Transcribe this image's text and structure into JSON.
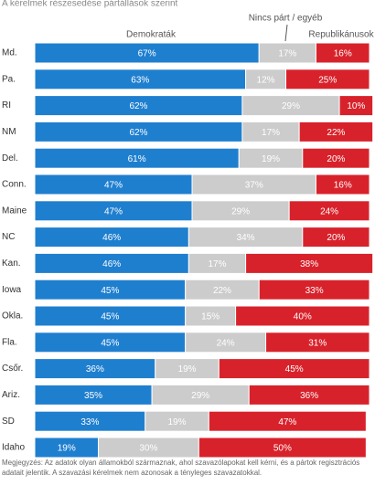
{
  "chart_data": {
    "type": "stacked-bar-horizontal",
    "title": "A kérelmek részesedése pártállások szerint",
    "categories": [
      "Md.",
      "Pa.",
      "RI",
      "NM",
      "Del.",
      "Conn.",
      "Maine",
      "NC",
      "Kan.",
      "Iowa",
      "Okla.",
      "Fla.",
      "Csőr.",
      "Ariz.",
      "SD",
      "Idaho"
    ],
    "series": [
      {
        "name": "Demokraták",
        "color": "#1f7fcf",
        "text_color": "#ffffff",
        "values": [
          67,
          63,
          62,
          62,
          61,
          47,
          47,
          46,
          46,
          45,
          45,
          45,
          36,
          35,
          33,
          19
        ],
        "value_labels": [
          "67%",
          "63%",
          "62%",
          "62%",
          "61%",
          "47%",
          "47%",
          "46%",
          "46%",
          "45%",
          "45%",
          "45%",
          "36%",
          "35%",
          "33%",
          "19%"
        ]
      },
      {
        "name": "Nincs párt / egyéb",
        "color": "#cccccc",
        "text_color": "#ffffff",
        "values": [
          17,
          12,
          29,
          17,
          19,
          37,
          29,
          34,
          17,
          22,
          15,
          24,
          19,
          29,
          19,
          30
        ],
        "value_labels": [
          "17%",
          "12%",
          "29%",
          "17%",
          "19%",
          "37%",
          "29%",
          "34%",
          "17%",
          "22%",
          "15%",
          "24%",
          "19%",
          "29%",
          "19%",
          "30%"
        ]
      },
      {
        "name": "Republikánusok",
        "color": "#d8222b",
        "text_color": "#ffffff",
        "values": [
          16,
          25,
          10,
          22,
          20,
          16,
          24,
          20,
          38,
          33,
          40,
          31,
          45,
          36,
          47,
          50
        ],
        "value_labels": [
          "16%",
          "25%",
          "10%",
          "22%",
          "20%",
          "16%",
          "24%",
          "20%",
          "38%",
          "33%",
          "40%",
          "31%",
          "45%",
          "36%",
          "47%",
          "50%"
        ]
      }
    ],
    "xlim": [
      0,
      100
    ],
    "note": [
      "Megjegyzés: Az adatok olyan államokból származnak, ahol szavazólapokat kell kérni, és a pártok regisztrációs",
      "adatait jelentik. A szavazási kérelmek nem azonosak a tényleges szavazatokkal."
    ]
  }
}
